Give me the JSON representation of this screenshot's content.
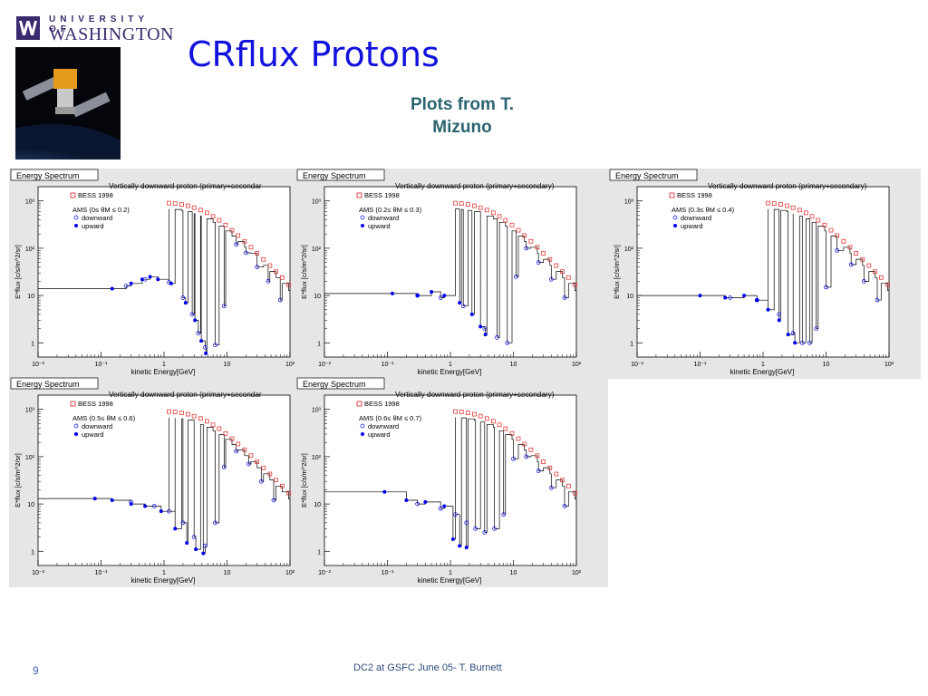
{
  "logo": {
    "line1": "UNIVERSITY OF",
    "line2": "WASHINGTON"
  },
  "slide": {
    "title": "CRflux Protons",
    "subtitle_line1": "Plots from T.",
    "subtitle_line2": "Mizuno"
  },
  "footer": {
    "page_number": "9",
    "text": "DC2 at GSFC June 05- T. Burnett"
  },
  "colors": {
    "title": "#1212dd",
    "subtitle": "#2b6470",
    "bess": "#e02020",
    "ams": "#0000ee"
  },
  "chart_data": [
    {
      "type": "scatter",
      "panel_label": "Energy Spectrum",
      "title": "Vertically downward proton (primary+secondar",
      "xlabel": "kinetic Energy[GeV]",
      "ylabel": "E*flux [c/s/m^2/sr]",
      "xscale": "log",
      "yscale": "log",
      "xlim": [
        0.01,
        100
      ],
      "ylim": [
        0.5,
        2000
      ],
      "xticks": [
        "10⁻²",
        "10⁻¹",
        "1",
        "10",
        "10²"
      ],
      "yticks": [
        "1",
        "10",
        "10²",
        "10³"
      ],
      "legend": {
        "bess": "BESS 1998",
        "ams": "AMS (0≤ θM ≤ 0.2)",
        "down": "downward",
        "up": "upward"
      },
      "series": [
        {
          "name": "BESS 1998",
          "x": [
            1.2,
            1.5,
            1.9,
            2.4,
            3,
            3.8,
            4.8,
            6,
            7.5,
            9.5,
            12,
            15,
            19,
            24,
            30,
            38,
            48,
            60,
            75,
            95
          ],
          "y": [
            900,
            880,
            840,
            790,
            720,
            640,
            560,
            470,
            390,
            310,
            240,
            185,
            140,
            105,
            78,
            58,
            43,
            32,
            24,
            17
          ]
        },
        {
          "name": "downward",
          "x": [
            0.25,
            0.5,
            1.2,
            2.0,
            2.8,
            3.5,
            4.5,
            6.5,
            9,
            14,
            20,
            30,
            45,
            70
          ],
          "y": [
            16,
            22,
            19,
            9,
            4,
            1.6,
            0.8,
            0.9,
            6,
            120,
            80,
            40,
            20,
            8
          ]
        },
        {
          "name": "upward",
          "x": [
            0.15,
            0.3,
            0.45,
            0.6,
            0.8,
            1.3,
            2.2,
            3.1,
            3.9,
            4.6
          ],
          "y": [
            14,
            18,
            22,
            25,
            22,
            18,
            7,
            3,
            1.1,
            0.6
          ]
        }
      ]
    },
    {
      "type": "scatter",
      "panel_label": "Energy Spectrum",
      "title": "Vertically downward proton (primary+secondary)",
      "xlabel": "kinetic Energy[GeV]",
      "ylabel": "E*flux [c/s/m^2/sr]",
      "xscale": "log",
      "yscale": "log",
      "xlim": [
        0.01,
        100
      ],
      "ylim": [
        0.5,
        2000
      ],
      "xticks": [
        "10⁻²",
        "10⁻¹",
        "1",
        "10",
        "10²"
      ],
      "yticks": [
        "1",
        "10",
        "10²",
        "10³"
      ],
      "legend": {
        "bess": "BESS 1998",
        "ams": "AMS (0.2≤ θM ≤ 0.3)",
        "down": "downward",
        "up": "upward"
      },
      "series": [
        {
          "name": "BESS 1998",
          "x": [
            1.2,
            1.5,
            1.9,
            2.4,
            3,
            3.8,
            4.8,
            6,
            7.5,
            9.5,
            12,
            15,
            19,
            24,
            30,
            38,
            48,
            60,
            75,
            95
          ],
          "y": [
            900,
            880,
            840,
            790,
            720,
            640,
            560,
            470,
            390,
            310,
            240,
            185,
            140,
            105,
            78,
            58,
            43,
            32,
            24,
            17
          ]
        },
        {
          "name": "downward",
          "x": [
            0.3,
            0.7,
            1.6,
            3.5,
            5.5,
            8,
            11,
            16,
            25,
            40,
            65
          ],
          "y": [
            10,
            9,
            6,
            2,
            1.3,
            1.0,
            25,
            100,
            50,
            22,
            9
          ]
        },
        {
          "name": "upward",
          "x": [
            0.12,
            0.3,
            0.5,
            0.8,
            1.4,
            2.2,
            3.0,
            3.6
          ],
          "y": [
            11,
            10,
            12,
            10,
            7,
            4,
            2.2,
            1.5
          ]
        }
      ]
    },
    {
      "type": "scatter",
      "panel_label": "Energy Spectrum",
      "title": "Vertically downward proton (primary+secondary)",
      "xlabel": "kinetic Energy[GeV]",
      "ylabel": "E*flux [c/s/m^2/sr]",
      "xscale": "log",
      "yscale": "log",
      "xlim": [
        0.01,
        100
      ],
      "ylim": [
        0.5,
        2000
      ],
      "xticks": [
        "10⁻²",
        "10⁻¹",
        "1",
        "10",
        "10²"
      ],
      "yticks": [
        "1",
        "10",
        "10²",
        "10³"
      ],
      "legend": {
        "bess": "BESS 1998",
        "ams": "AMS (0.3≤ θM ≤ 0.4)",
        "down": "downward",
        "up": "upward"
      },
      "series": [
        {
          "name": "BESS 1998",
          "x": [
            1.2,
            1.5,
            1.9,
            2.4,
            3,
            3.8,
            4.8,
            6,
            7.5,
            9.5,
            12,
            15,
            19,
            24,
            30,
            38,
            48,
            60,
            75,
            95
          ],
          "y": [
            900,
            880,
            840,
            790,
            720,
            640,
            560,
            470,
            390,
            310,
            240,
            185,
            140,
            105,
            78,
            58,
            43,
            32,
            24,
            17
          ]
        },
        {
          "name": "downward",
          "x": [
            0.3,
            0.8,
            1.8,
            3,
            4.2,
            5.5,
            7,
            10,
            15,
            25,
            40,
            65
          ],
          "y": [
            9,
            8,
            4,
            1.6,
            1.0,
            1.0,
            2,
            15,
            90,
            45,
            20,
            8
          ]
        },
        {
          "name": "upward",
          "x": [
            0.1,
            0.25,
            0.5,
            0.8,
            1.2,
            1.8,
            2.5,
            3.2
          ],
          "y": [
            10,
            9,
            10,
            8,
            5,
            3,
            1.5,
            1.0
          ]
        }
      ]
    },
    {
      "type": "scatter",
      "panel_label": "Energy Spectrum",
      "title": "Vertically downward proton (primary+secondar",
      "xlabel": "kinetic Energy[GeV]",
      "ylabel": "E*flux [c/s/m^2/sr]",
      "xscale": "log",
      "yscale": "log",
      "xlim": [
        0.01,
        100
      ],
      "ylim": [
        0.5,
        2000
      ],
      "xticks": [
        "10⁻²",
        "10⁻¹",
        "1",
        "10",
        "10²"
      ],
      "yticks": [
        "1",
        "10",
        "10²",
        "10³"
      ],
      "legend": {
        "bess": "BESS 1998",
        "ams": "AMS (0.5≤ θM ≤ 0.6)",
        "down": "downward",
        "up": "upward"
      },
      "series": [
        {
          "name": "BESS 1998",
          "x": [
            1.2,
            1.5,
            1.9,
            2.4,
            3,
            3.8,
            4.8,
            6,
            7.5,
            9.5,
            12,
            15,
            19,
            24,
            30,
            38,
            48,
            60,
            75,
            95
          ],
          "y": [
            900,
            880,
            840,
            790,
            720,
            640,
            560,
            470,
            390,
            310,
            240,
            185,
            140,
            105,
            78,
            58,
            43,
            32,
            24,
            17
          ]
        },
        {
          "name": "downward",
          "x": [
            0.3,
            0.7,
            1.2,
            2.0,
            3.0,
            4.5,
            6.5,
            9,
            14,
            22,
            35,
            55
          ],
          "y": [
            11,
            9,
            7,
            4,
            2,
            1.3,
            4,
            60,
            130,
            70,
            30,
            12
          ]
        },
        {
          "name": "upward",
          "x": [
            0.08,
            0.15,
            0.3,
            0.5,
            0.9,
            1.5,
            2.3,
            3.2,
            4.2
          ],
          "y": [
            13,
            12,
            10,
            9,
            7,
            3,
            1.5,
            1.1,
            0.9
          ]
        }
      ]
    },
    {
      "type": "scatter",
      "panel_label": "Energy Spectrum",
      "title": "Vertically downward proton (primary+secondary)",
      "xlabel": "kinetic Energy[GeV]",
      "ylabel": "E*flux [c/s/m^2/sr]",
      "xscale": "log",
      "yscale": "log",
      "xlim": [
        0.01,
        100
      ],
      "ylim": [
        0.5,
        2000
      ],
      "xticks": [
        "10⁻²",
        "10⁻¹",
        "1",
        "10",
        "10²"
      ],
      "yticks": [
        "1",
        "10",
        "10²",
        "10³"
      ],
      "legend": {
        "bess": "BESS 1998",
        "ams": "AMS (0.6≤ θM ≤ 0.7)",
        "down": "downward",
        "up": "upward"
      },
      "series": [
        {
          "name": "BESS 1998",
          "x": [
            1.2,
            1.5,
            1.9,
            2.4,
            3,
            3.8,
            4.8,
            6,
            7.5,
            9.5,
            12,
            15,
            19,
            24,
            30,
            38,
            48,
            60,
            75,
            95
          ],
          "y": [
            900,
            880,
            840,
            790,
            720,
            640,
            560,
            470,
            390,
            310,
            240,
            185,
            140,
            105,
            78,
            58,
            43,
            32,
            24,
            17
          ]
        },
        {
          "name": "downward",
          "x": [
            0.3,
            0.7,
            1.2,
            1.8,
            2.5,
            3.5,
            5,
            7,
            10,
            16,
            25,
            40,
            65
          ],
          "y": [
            10,
            8,
            6,
            4,
            3,
            2.5,
            3,
            6,
            90,
            100,
            50,
            22,
            9
          ]
        },
        {
          "name": "upward",
          "x": [
            0.09,
            0.2,
            0.4,
            0.8,
            1.1,
            1.4,
            1.8
          ],
          "y": [
            18,
            12,
            11,
            9,
            1.8,
            1.3,
            1.2
          ]
        }
      ]
    }
  ]
}
